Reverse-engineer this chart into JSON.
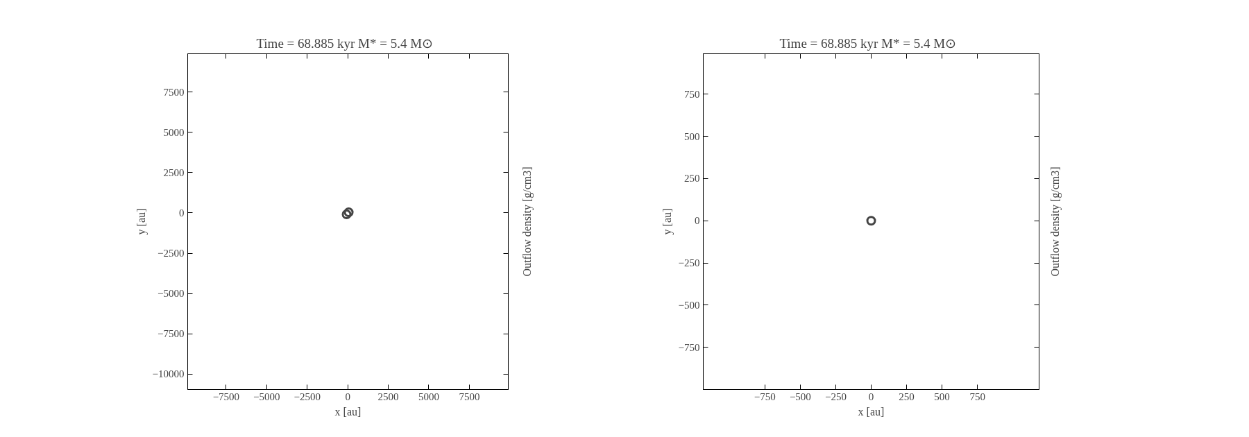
{
  "chart_data": [
    {
      "type": "scatter",
      "title": "Time = 68.885 kyr   M* = 5.4 M⊙",
      "xlabel": "x [au]",
      "ylabel": "y [au]",
      "clabel": "Outflow density [g/cm3]",
      "marker": "circle",
      "grid": false,
      "series": [
        {
          "color": "#444444",
          "x": [
            -70,
            60
          ],
          "values": [
            -90,
            40
          ]
        }
      ],
      "xlim": [
        -9870,
        9900
      ],
      "ylim": [
        -10950,
        9870
      ],
      "xticks": [
        -7500,
        -5000,
        -2500,
        0,
        2500,
        5000,
        7500
      ],
      "yticks": [
        -10000,
        -7500,
        -5000,
        -2500,
        0,
        2500,
        5000,
        7500
      ]
    },
    {
      "type": "scatter",
      "title": "Time = 68.885 kyr   M* = 5.4 M⊙",
      "xlabel": "x [au]",
      "ylabel": "y [au]",
      "clabel": "Outflow density [g/cm3]",
      "marker": "circle",
      "grid": false,
      "series": [
        {
          "color": "#444444",
          "x": [
            0
          ],
          "values": [
            0
          ]
        }
      ],
      "xlim": [
        -1185,
        1185
      ],
      "ylim": [
        -1000,
        990
      ],
      "xticks": [
        -750,
        -500,
        -250,
        0,
        250,
        500,
        750
      ],
      "yticks": [
        -750,
        -500,
        -250,
        0,
        250,
        500,
        750
      ]
    }
  ]
}
